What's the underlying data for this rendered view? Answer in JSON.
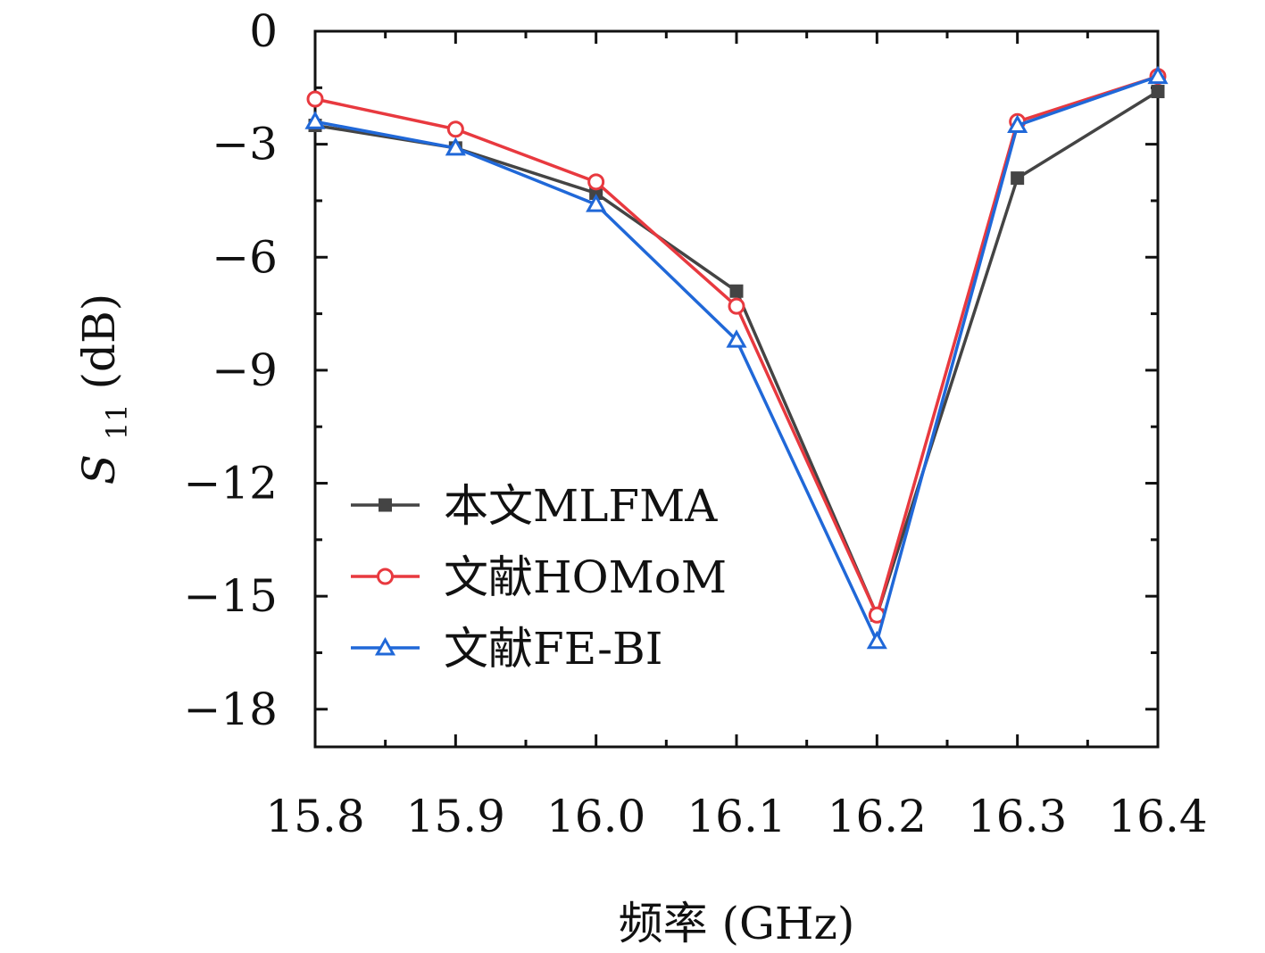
{
  "chart_data": {
    "type": "line",
    "x": [
      15.8,
      15.9,
      16.0,
      16.1,
      16.2,
      16.3,
      16.4
    ],
    "x_tick_labels": [
      "15.8",
      "15.9",
      "16.0",
      "16.1",
      "16.2",
      "16.3",
      "16.4"
    ],
    "y_ticks": [
      0,
      -3,
      -6,
      -9,
      -12,
      -15,
      -18
    ],
    "y_tick_labels": [
      "0",
      "−3",
      "−6",
      "−9",
      "−12",
      "−15",
      "−18"
    ],
    "xlim": [
      15.8,
      16.4
    ],
    "ylim": [
      -19,
      0
    ],
    "xlabel": "频率 (GHz)",
    "ylabel_main": "S",
    "ylabel_sub": "11",
    "ylabel_unit": " (dB)",
    "grid": false,
    "legend_position": "lower-left",
    "series": [
      {
        "name": "本文MLFMA",
        "color": "#444444",
        "marker": "square-filled",
        "values": [
          -2.5,
          -3.1,
          -4.3,
          -6.9,
          -15.5,
          -3.9,
          -1.6
        ]
      },
      {
        "name": "文献HOMoM",
        "color": "#e8393f",
        "marker": "circle-open",
        "values": [
          -1.8,
          -2.6,
          -4.0,
          -7.3,
          -15.5,
          -2.4,
          -1.2
        ]
      },
      {
        "name": "文献FE-BI",
        "color": "#2068d8",
        "marker": "triangle-open",
        "values": [
          -2.4,
          -3.1,
          -4.6,
          -8.2,
          -16.2,
          -2.5,
          -1.2
        ]
      }
    ]
  }
}
